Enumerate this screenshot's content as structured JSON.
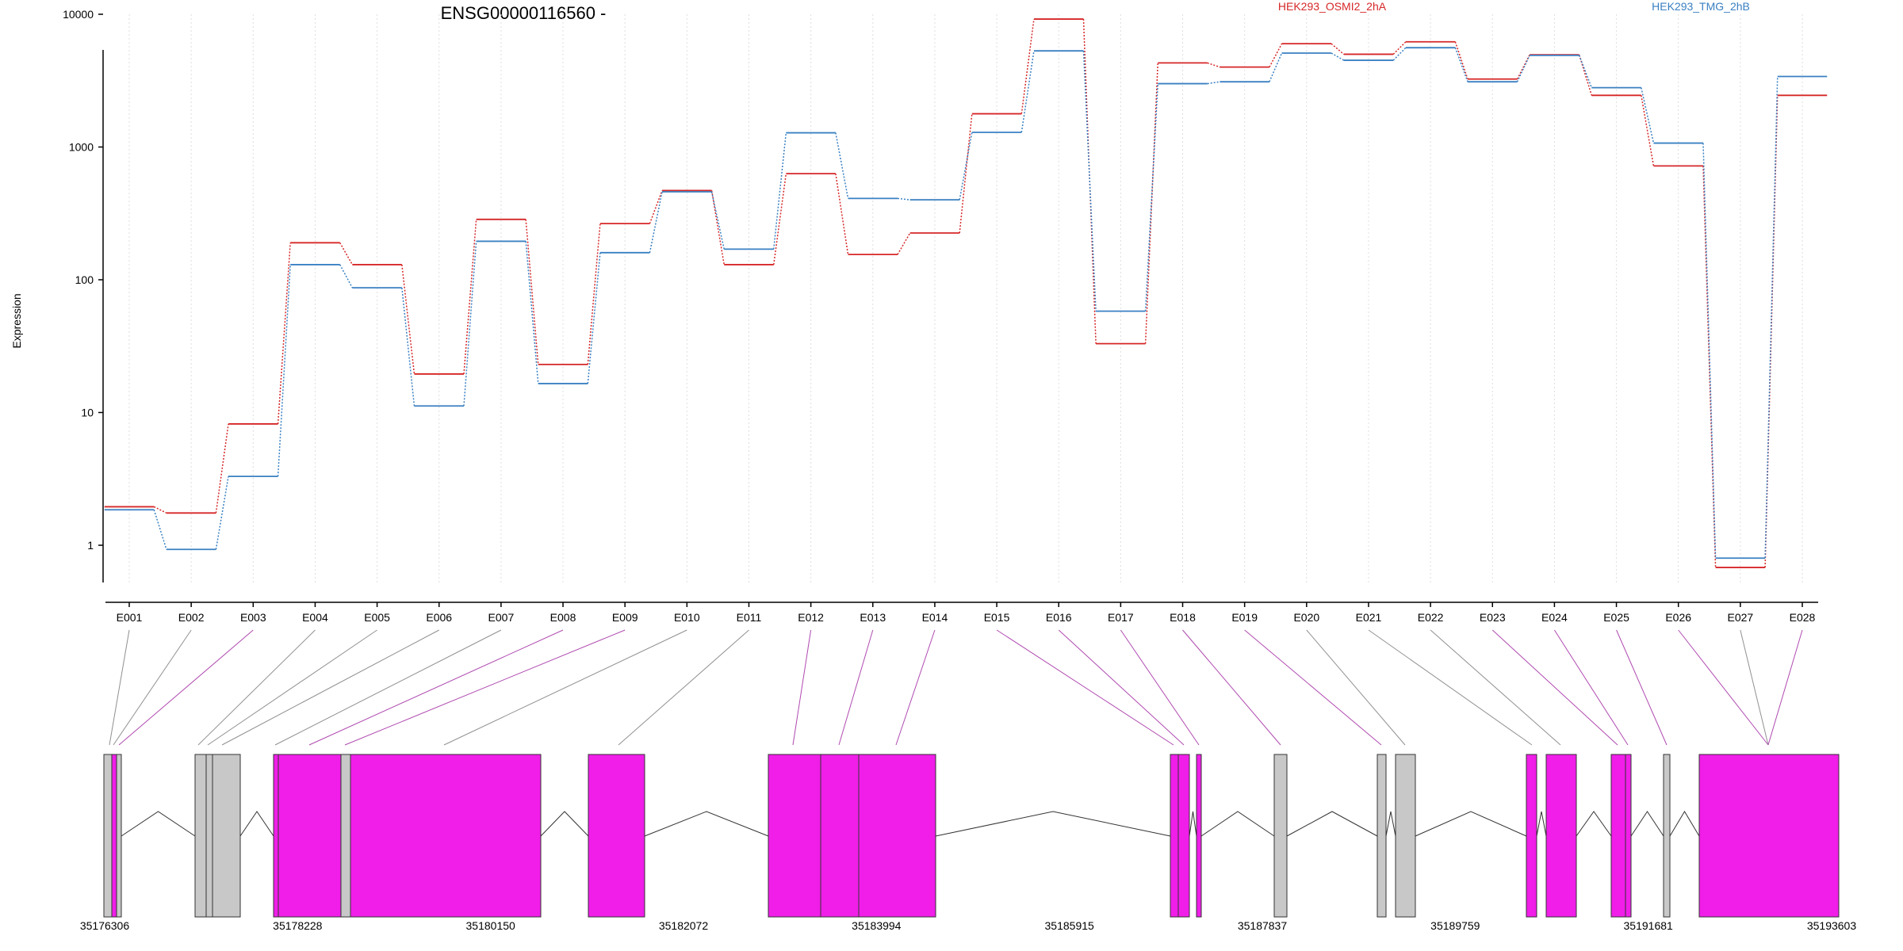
{
  "title": "ENSG00000116560 -",
  "legend": [
    {
      "label": "HEK293_OSMI2_2hA",
      "color": "#d62728"
    },
    {
      "label": "HEK293_TMG_2hB",
      "color": "#3a80c2"
    }
  ],
  "chart_data": {
    "type": "line",
    "title": "ENSG00000116560 -",
    "xlabel": "",
    "ylabel": "Expression",
    "yscale": "log",
    "ylim": [
      0.45,
      10000
    ],
    "yticks": [
      "10000",
      "1000",
      "100",
      "10",
      "1"
    ],
    "categories": [
      "E001",
      "E002",
      "E003",
      "E004",
      "E005",
      "E006",
      "E007",
      "E008",
      "E009",
      "E010",
      "E011",
      "E012",
      "E013",
      "E014",
      "E015",
      "E016",
      "E017",
      "E018",
      "E019",
      "E020",
      "E021",
      "E022",
      "E023",
      "E024",
      "E025",
      "E026",
      "E027",
      "E028"
    ],
    "series": [
      {
        "name": "HEK293_OSMI2_2hA",
        "color": "#d62728",
        "values": [
          1.95,
          1.75,
          8.2,
          190,
          130,
          19.5,
          285,
          23,
          265,
          470,
          130,
          630,
          155,
          225,
          1780,
          9200,
          33,
          4300,
          4000,
          6000,
          5000,
          6200,
          3250,
          4950,
          2450,
          720,
          0.68,
          2450
        ]
      },
      {
        "name": "HEK293_TMG_2hB",
        "color": "#3a80c2",
        "values": [
          1.85,
          0.93,
          3.3,
          130,
          87,
          11.2,
          195,
          16.5,
          160,
          460,
          170,
          1280,
          410,
          400,
          1290,
          5300,
          58,
          3000,
          3100,
          5100,
          4500,
          5600,
          3100,
          4900,
          2800,
          1070,
          0.8,
          3400
        ]
      }
    ],
    "grid": "vertical-dotted"
  },
  "gene_model": {
    "coord_ticks": [
      "35176306",
      "35178228",
      "35180150",
      "35182072",
      "35183994",
      "35185915",
      "35187837",
      "35189759",
      "35191681",
      "35193603"
    ],
    "exon_highlight": [
      false,
      false,
      true,
      false,
      false,
      false,
      false,
      true,
      true,
      false,
      false,
      true,
      true,
      true,
      true,
      true,
      true,
      true,
      true,
      false,
      false,
      false,
      true,
      true,
      true,
      true,
      false,
      true
    ],
    "colors": {
      "highlighted": "#f01ee8",
      "plain": "#c8c8c8",
      "highlight_line": "#b04ab0",
      "plain_line": "#909090"
    }
  }
}
